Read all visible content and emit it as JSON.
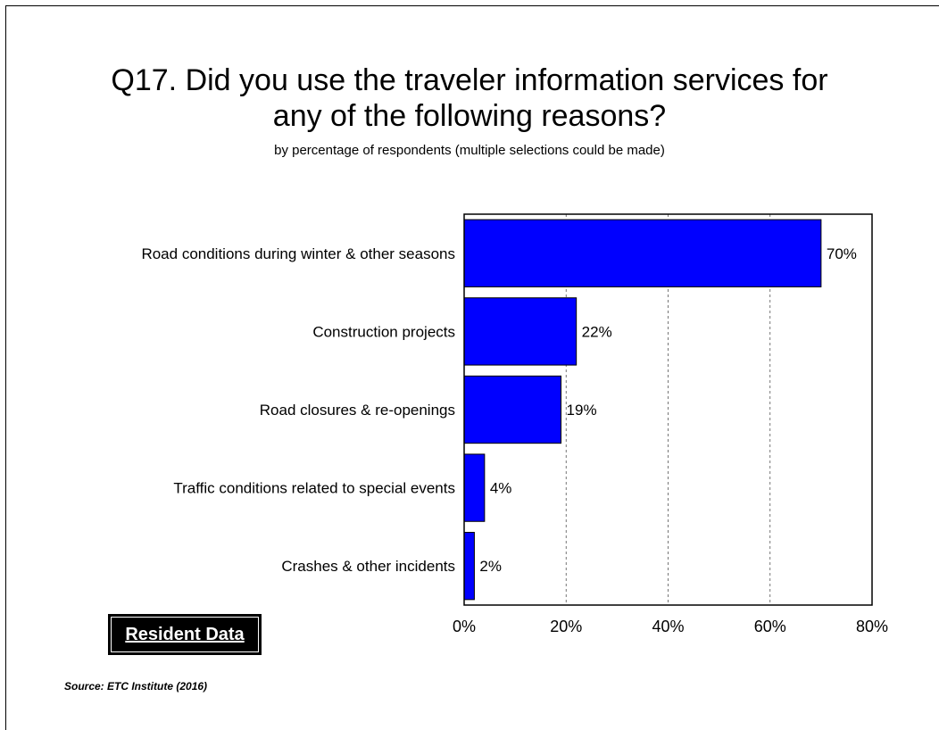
{
  "slide": {
    "title_line1": "Q17. Did you use the traveler information services for",
    "title_line2": "any of the following reasons?",
    "subtitle": "by percentage of respondents (multiple selections could be made)",
    "badge": "Resident Data",
    "source": "Source:  ETC Institute (2016)"
  },
  "chart_data": {
    "type": "bar",
    "orientation": "horizontal",
    "title": "Q17. Did you use the traveler information services for any of the following reasons?",
    "subtitle": "by percentage of respondents (multiple selections could be made)",
    "categories": [
      "Road conditions during winter & other seasons",
      "Construction projects",
      "Road closures & re-openings",
      "Traffic conditions related to special events",
      "Crashes & other incidents"
    ],
    "values": [
      70,
      22,
      19,
      4,
      2
    ],
    "value_labels": [
      "70%",
      "22%",
      "19%",
      "4%",
      "2%"
    ],
    "xlim": [
      0,
      80
    ],
    "xticks": [
      0,
      20,
      40,
      60,
      80
    ],
    "xtick_labels": [
      "0%",
      "20%",
      "40%",
      "60%",
      "80%"
    ],
    "grid": "vertical dashed",
    "bar_color": "#0000ff",
    "legend": "none"
  }
}
